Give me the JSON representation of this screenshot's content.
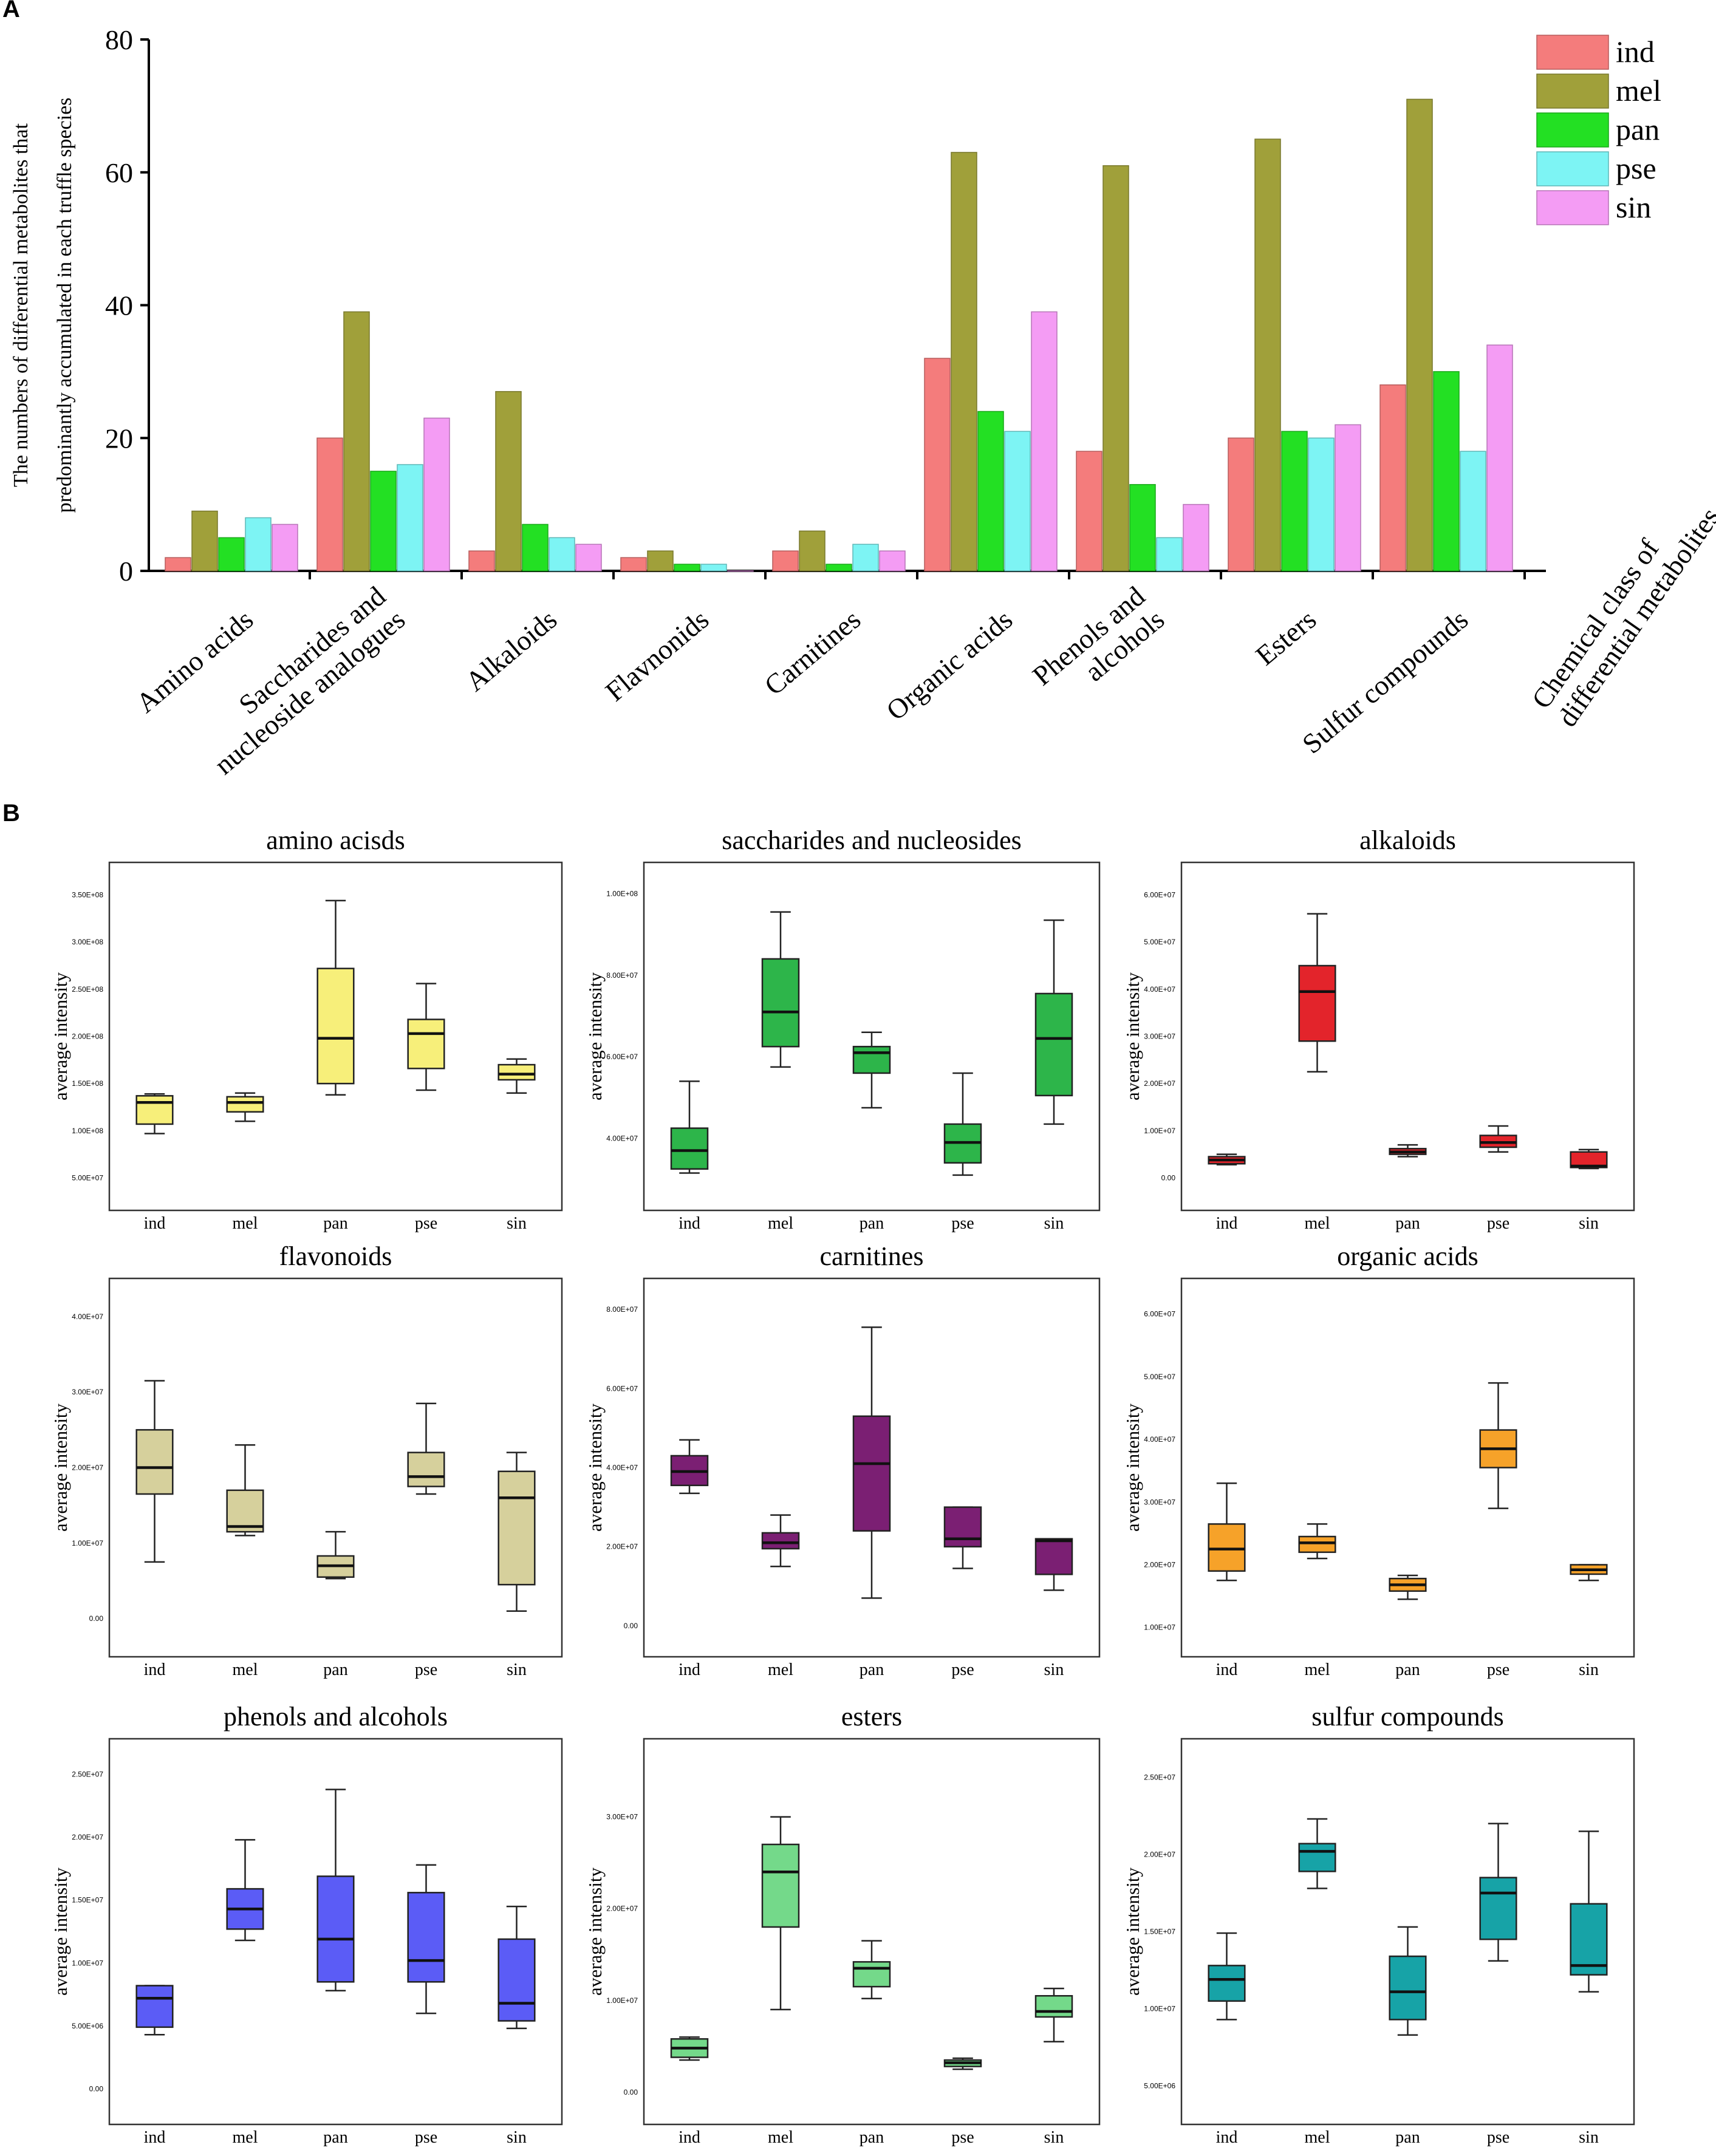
{
  "figure": {
    "panel_a_label": "A",
    "panel_b_label": "B"
  },
  "colors": {
    "ind": "#f47c7c",
    "mel": "#a0a03a",
    "pan": "#23e023",
    "pse": "#7df4f4",
    "sin": "#f49cf4"
  },
  "chart_data": [
    {
      "type": "bar",
      "title": "",
      "ylabel_line1": "The numbers of differential metabolites that",
      "ylabel_line2": "predominantly accumulated in each truffle species",
      "xlabel_line1": "Chemical class of",
      "xlabel_line2": "differential metabolites",
      "ylim": [
        0,
        80
      ],
      "yticks": [
        "0",
        "20",
        "40",
        "60",
        "80"
      ],
      "legend_position": "top-right",
      "categories": [
        {
          "lines": [
            "Amino acids"
          ]
        },
        {
          "lines": [
            "Saccharides and",
            "nucleoside analogues"
          ]
        },
        {
          "lines": [
            "Alkaloids"
          ]
        },
        {
          "lines": [
            "Flavnonids"
          ]
        },
        {
          "lines": [
            "Carnitines"
          ]
        },
        {
          "lines": [
            "Organic acids"
          ]
        },
        {
          "lines": [
            "Phenols and",
            "alcohols"
          ]
        },
        {
          "lines": [
            "Esters"
          ]
        },
        {
          "lines": [
            "Sulfur compounds"
          ]
        }
      ],
      "series": [
        {
          "name": "ind",
          "values": [
            2,
            20,
            3,
            2,
            3,
            32,
            18,
            20,
            28
          ]
        },
        {
          "name": "mel",
          "values": [
            9,
            39,
            27,
            3,
            6,
            63,
            61,
            65,
            71
          ]
        },
        {
          "name": "pan",
          "values": [
            5,
            15,
            7,
            1,
            1,
            24,
            13,
            21,
            30
          ]
        },
        {
          "name": "pse",
          "values": [
            8,
            16,
            5,
            1,
            4,
            21,
            5,
            20,
            18
          ]
        },
        {
          "name": "sin",
          "values": [
            7,
            23,
            4,
            0,
            3,
            39,
            10,
            22,
            34
          ]
        }
      ]
    },
    {
      "type": "box",
      "title": "amino acisds",
      "ylabel": "average intensity",
      "color": "#f7ef7a",
      "ylim": [
        40000000,
        360000000
      ],
      "yticks": [
        {
          "v": 50000000,
          "label": "5.00E+07"
        },
        {
          "v": 100000000,
          "label": "1.00E+08"
        },
        {
          "v": 150000000,
          "label": "1.50E+08"
        },
        {
          "v": 200000000,
          "label": "2.00E+08"
        },
        {
          "v": 250000000,
          "label": "2.50E+08"
        },
        {
          "v": 300000000,
          "label": "3.00E+08"
        },
        {
          "v": 350000000,
          "label": "3.50E+08"
        }
      ],
      "boxes": [
        {
          "label": "ind",
          "min": 97000000,
          "q1": 107000000,
          "median": 130000000,
          "q3": 137000000,
          "max": 139000000
        },
        {
          "label": "mel",
          "min": 110000000,
          "q1": 120000000,
          "median": 130000000,
          "q3": 136000000,
          "max": 140000000
        },
        {
          "label": "pan",
          "min": 138000000,
          "q1": 150000000,
          "median": 198000000,
          "q3": 272000000,
          "max": 344000000
        },
        {
          "label": "pse",
          "min": 143000000,
          "q1": 166000000,
          "median": 203000000,
          "q3": 218000000,
          "max": 256000000
        },
        {
          "label": "sin",
          "min": 140000000,
          "q1": 154000000,
          "median": 160000000,
          "q3": 170000000,
          "max": 176000000
        }
      ]
    },
    {
      "type": "box",
      "title": "saccharides and nucleosides",
      "ylabel": "average intensity",
      "color": "#2db54a",
      "ylim": [
        28000000,
        102000000
      ],
      "yticks": [
        {
          "v": 40000000,
          "label": "4.00E+07"
        },
        {
          "v": 60000000,
          "label": "6.00E+07"
        },
        {
          "v": 80000000,
          "label": "8.00E+07"
        },
        {
          "v": 100000000,
          "label": "1.00E+08"
        }
      ],
      "boxes": [
        {
          "label": "ind",
          "min": 31500000,
          "q1": 32500000,
          "median": 37000000,
          "q3": 42500000,
          "max": 54000000
        },
        {
          "label": "mel",
          "min": 57500000,
          "q1": 62500000,
          "median": 71000000,
          "q3": 84000000,
          "max": 95500000
        },
        {
          "label": "pan",
          "min": 47500000,
          "q1": 56000000,
          "median": 61000000,
          "q3": 62500000,
          "max": 66000000
        },
        {
          "label": "pse",
          "min": 31000000,
          "q1": 34000000,
          "median": 39000000,
          "q3": 43500000,
          "max": 56000000
        },
        {
          "label": "sin",
          "min": 43500000,
          "q1": 50500000,
          "median": 64500000,
          "q3": 75500000,
          "max": 93500000
        }
      ]
    },
    {
      "type": "box",
      "title": "alkaloids",
      "ylabel": "average intensity",
      "color": "#e3242b",
      "ylim": [
        -2000000,
        62000000
      ],
      "yticks": [
        {
          "v": 0,
          "label": "0.00"
        },
        {
          "v": 10000000,
          "label": "1.00E+07"
        },
        {
          "v": 20000000,
          "label": "2.00E+07"
        },
        {
          "v": 30000000,
          "label": "3.00E+07"
        },
        {
          "v": 40000000,
          "label": "4.00E+07"
        },
        {
          "v": 50000000,
          "label": "5.00E+07"
        },
        {
          "v": 60000000,
          "label": "6.00E+07"
        }
      ],
      "boxes": [
        {
          "label": "ind",
          "min": 2800000,
          "q1": 3000000,
          "median": 3800000,
          "q3": 4500000,
          "max": 5000000
        },
        {
          "label": "mel",
          "min": 22500000,
          "q1": 29000000,
          "median": 39500000,
          "q3": 45000000,
          "max": 56000000
        },
        {
          "label": "pan",
          "min": 4500000,
          "q1": 5000000,
          "median": 5500000,
          "q3": 6200000,
          "max": 7000000
        },
        {
          "label": "pse",
          "min": 5500000,
          "q1": 6500000,
          "median": 7500000,
          "q3": 9000000,
          "max": 11000000
        },
        {
          "label": "sin",
          "min": 2000000,
          "q1": 2200000,
          "median": 2500000,
          "q3": 5500000,
          "max": 6000000
        }
      ]
    },
    {
      "type": "box",
      "title": "flavonoids",
      "ylabel": "average intensity",
      "color": "#d6d09c",
      "ylim": [
        -2000000,
        42000000
      ],
      "yticks": [
        {
          "v": 0,
          "label": "0.00"
        },
        {
          "v": 10000000,
          "label": "1.00E+07"
        },
        {
          "v": 20000000,
          "label": "2.00E+07"
        },
        {
          "v": 30000000,
          "label": "3.00E+07"
        },
        {
          "v": 40000000,
          "label": "4.00E+07"
        }
      ],
      "boxes": [
        {
          "label": "ind",
          "min": 7500000,
          "q1": 16500000,
          "median": 20000000,
          "q3": 25000000,
          "max": 31500000
        },
        {
          "label": "mel",
          "min": 11000000,
          "q1": 11500000,
          "median": 12200000,
          "q3": 17000000,
          "max": 23000000
        },
        {
          "label": "pan",
          "min": 5300000,
          "q1": 5500000,
          "median": 7000000,
          "q3": 8300000,
          "max": 11500000
        },
        {
          "label": "pse",
          "min": 16500000,
          "q1": 17500000,
          "median": 18800000,
          "q3": 22000000,
          "max": 28500000
        },
        {
          "label": "sin",
          "min": 1000000,
          "q1": 4500000,
          "median": 16000000,
          "q3": 19500000,
          "max": 22000000
        }
      ]
    },
    {
      "type": "box",
      "title": "carnitines",
      "ylabel": "average intensity",
      "color": "#7b1f73",
      "ylim": [
        -2000000,
        82000000
      ],
      "yticks": [
        {
          "v": 0,
          "label": "0.00"
        },
        {
          "v": 20000000,
          "label": "2.00E+07"
        },
        {
          "v": 40000000,
          "label": "4.00E+07"
        },
        {
          "v": 60000000,
          "label": "6.00E+07"
        },
        {
          "v": 80000000,
          "label": "8.00E+07"
        }
      ],
      "boxes": [
        {
          "label": "ind",
          "min": 33500000,
          "q1": 35500000,
          "median": 39000000,
          "q3": 43000000,
          "max": 47000000
        },
        {
          "label": "mel",
          "min": 15000000,
          "q1": 19500000,
          "median": 21000000,
          "q3": 23500000,
          "max": 28000000
        },
        {
          "label": "pan",
          "min": 7000000,
          "q1": 24000000,
          "median": 41000000,
          "q3": 53000000,
          "max": 75500000
        },
        {
          "label": "pse",
          "min": 14500000,
          "q1": 20000000,
          "median": 22000000,
          "q3": 30000000,
          "max": 30000000
        },
        {
          "label": "sin",
          "min": 9000000,
          "q1": 13000000,
          "median": 21500000,
          "q3": 22000000,
          "max": 22000000
        }
      ]
    },
    {
      "type": "box",
      "title": "organic acids",
      "ylabel": "average intensity",
      "color": "#f6a229",
      "ylim": [
        9000000,
        62000000
      ],
      "yticks": [
        {
          "v": 10000000,
          "label": "1.00E+07"
        },
        {
          "v": 20000000,
          "label": "2.00E+07"
        },
        {
          "v": 30000000,
          "label": "3.00E+07"
        },
        {
          "v": 40000000,
          "label": "4.00E+07"
        },
        {
          "v": 50000000,
          "label": "5.00E+07"
        },
        {
          "v": 60000000,
          "label": "6.00E+07"
        }
      ],
      "boxes": [
        {
          "label": "ind",
          "min": 17500000,
          "q1": 19000000,
          "median": 22500000,
          "q3": 26500000,
          "max": 33000000
        },
        {
          "label": "mel",
          "min": 21000000,
          "q1": 22000000,
          "median": 23500000,
          "q3": 24500000,
          "max": 26500000
        },
        {
          "label": "pan",
          "min": 14500000,
          "q1": 15800000,
          "median": 16800000,
          "q3": 17800000,
          "max": 18300000
        },
        {
          "label": "pse",
          "min": 29000000,
          "q1": 35500000,
          "median": 38500000,
          "q3": 41500000,
          "max": 49000000
        },
        {
          "label": "sin",
          "min": 17500000,
          "q1": 18500000,
          "median": 19200000,
          "q3": 20000000,
          "max": 20000000
        }
      ]
    },
    {
      "type": "box",
      "title": "phenols and alcohols",
      "ylabel": "average intensity",
      "color": "#5b5cf6",
      "ylim": [
        -1000000,
        26000000
      ],
      "yticks": [
        {
          "v": 0,
          "label": "0.00"
        },
        {
          "v": 5000000,
          "label": "5.00E+06"
        },
        {
          "v": 10000000,
          "label": "1.00E+07"
        },
        {
          "v": 15000000,
          "label": "1.50E+07"
        },
        {
          "v": 20000000,
          "label": "2.00E+07"
        },
        {
          "v": 25000000,
          "label": "2.50E+07"
        }
      ],
      "boxes": [
        {
          "label": "ind",
          "min": 4300000,
          "q1": 4900000,
          "median": 7200000,
          "q3": 8200000,
          "max": 8200000
        },
        {
          "label": "mel",
          "min": 11800000,
          "q1": 12700000,
          "median": 14300000,
          "q3": 15900000,
          "max": 19800000
        },
        {
          "label": "pan",
          "min": 7800000,
          "q1": 8500000,
          "median": 11900000,
          "q3": 16900000,
          "max": 23800000
        },
        {
          "label": "pse",
          "min": 6000000,
          "q1": 8500000,
          "median": 10200000,
          "q3": 15600000,
          "max": 17800000
        },
        {
          "label": "sin",
          "min": 4800000,
          "q1": 5400000,
          "median": 6800000,
          "q3": 11900000,
          "max": 14500000
        }
      ]
    },
    {
      "type": "box",
      "title": "esters",
      "ylabel": "average intensity",
      "color": "#74d98a",
      "ylim": [
        -1000000,
        36000000
      ],
      "yticks": [
        {
          "v": 0,
          "label": "0.00"
        },
        {
          "v": 10000000,
          "label": "1.00E+07"
        },
        {
          "v": 20000000,
          "label": "2.00E+07"
        },
        {
          "v": 30000000,
          "label": "3.00E+07"
        }
      ],
      "boxes": [
        {
          "label": "ind",
          "min": 3500000,
          "q1": 3800000,
          "median": 4800000,
          "q3": 5800000,
          "max": 6000000
        },
        {
          "label": "mel",
          "min": 9000000,
          "q1": 18000000,
          "median": 24000000,
          "q3": 27000000,
          "max": 30000000
        },
        {
          "label": "pan",
          "min": 10200000,
          "q1": 11500000,
          "median": 13500000,
          "q3": 14200000,
          "max": 16500000
        },
        {
          "label": "pse",
          "min": 2500000,
          "q1": 2800000,
          "median": 3200000,
          "q3": 3500000,
          "max": 3700000
        },
        {
          "label": "sin",
          "min": 5500000,
          "q1": 8200000,
          "median": 8800000,
          "q3": 10500000,
          "max": 11300000
        }
      ]
    },
    {
      "type": "box",
      "title": "sulfur compounds",
      "ylabel": "average intensity",
      "color": "#17a3a7",
      "ylim": [
        4000000,
        26000000
      ],
      "yticks": [
        {
          "v": 5000000,
          "label": "5.00E+06"
        },
        {
          "v": 10000000,
          "label": "1.00E+07"
        },
        {
          "v": 15000000,
          "label": "1.50E+07"
        },
        {
          "v": 20000000,
          "label": "2.00E+07"
        },
        {
          "v": 25000000,
          "label": "2.50E+07"
        }
      ],
      "boxes": [
        {
          "label": "ind",
          "min": 9300000,
          "q1": 10500000,
          "median": 11900000,
          "q3": 12800000,
          "max": 14900000
        },
        {
          "label": "mel",
          "min": 17800000,
          "q1": 18900000,
          "median": 20200000,
          "q3": 20700000,
          "max": 22300000
        },
        {
          "label": "pan",
          "min": 8300000,
          "q1": 9300000,
          "median": 11100000,
          "q3": 13400000,
          "max": 15300000
        },
        {
          "label": "pse",
          "min": 13100000,
          "q1": 14500000,
          "median": 17500000,
          "q3": 18500000,
          "max": 22000000
        },
        {
          "label": "sin",
          "min": 11100000,
          "q1": 12200000,
          "median": 12800000,
          "q3": 16800000,
          "max": 21500000
        }
      ]
    }
  ]
}
